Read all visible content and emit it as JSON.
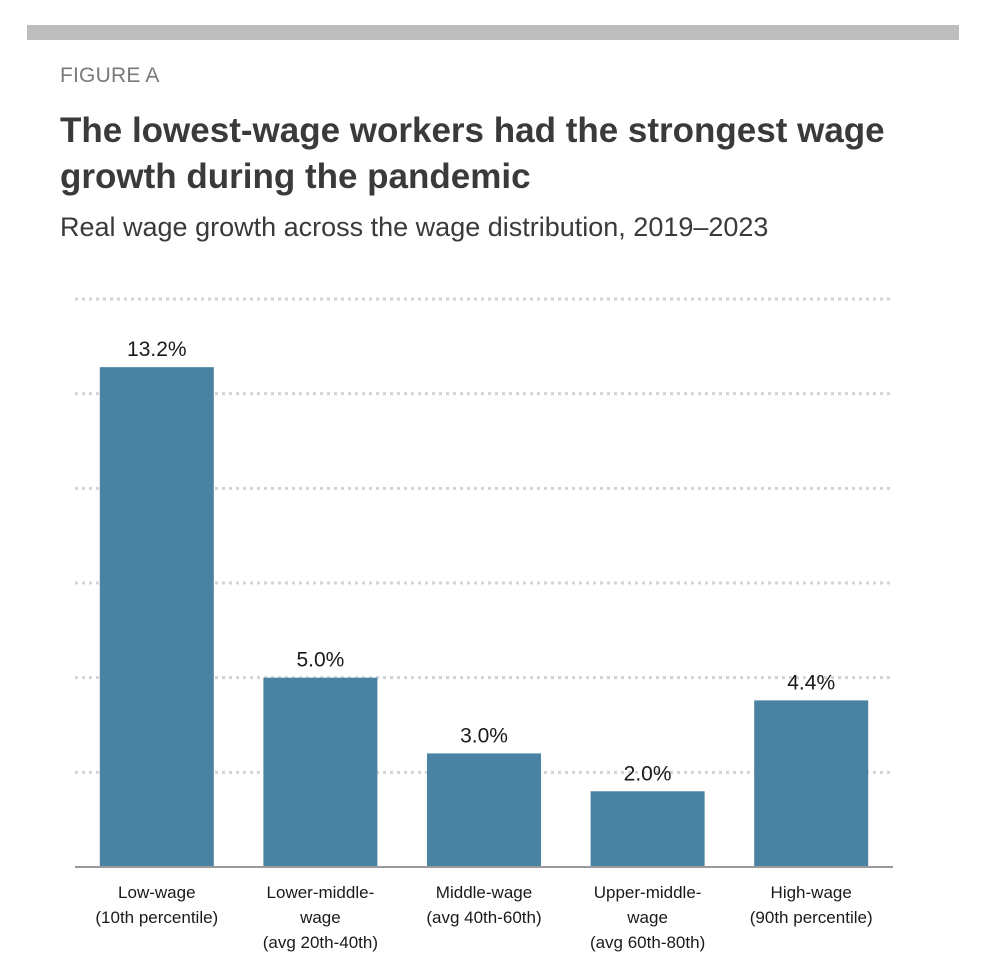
{
  "figure_label": "FIGURE A",
  "title": "The lowest-wage workers had the strongest wage growth during the pandemic",
  "subtitle": "Real wage growth across the wage distribution, 2019–2023",
  "colors": {
    "bar": "#4a82a4",
    "grid": "#d4d4d4",
    "axis": "#9a9a9a",
    "text": "#3a3a3a",
    "rule": "#bdbdbd"
  },
  "chart_data": {
    "type": "bar",
    "title": "The lowest-wage workers had the strongest wage growth during the pandemic",
    "subtitle": "Real wage growth across the wage distribution, 2019–2023",
    "categories": [
      "Low-wage (10th percentile)",
      "Lower-middle-wage (avg 20th-40th)",
      "Middle-wage (avg 40th-60th)",
      "Upper-middle-wage (avg 60th-80th)",
      "High-wage (90th percentile)"
    ],
    "category_lines": [
      [
        "Low-wage",
        "(10th percentile)"
      ],
      [
        "Lower-middle-",
        "wage",
        "(avg 20th-40th)"
      ],
      [
        "Middle-wage",
        "(avg 40th-60th)"
      ],
      [
        "Upper-middle-",
        "wage",
        "(avg 60th-80th)"
      ],
      [
        "High-wage",
        "(90th percentile)"
      ]
    ],
    "values": [
      13.2,
      5.0,
      3.0,
      2.0,
      4.4
    ],
    "value_labels": [
      "13.2%",
      "5.0%",
      "3.0%",
      "2.0%",
      "4.4%"
    ],
    "ylim": [
      0,
      15
    ],
    "ytick_step": 2.5,
    "yaxis_labels_shown": false,
    "grid": true,
    "grid_style": "dotted"
  }
}
